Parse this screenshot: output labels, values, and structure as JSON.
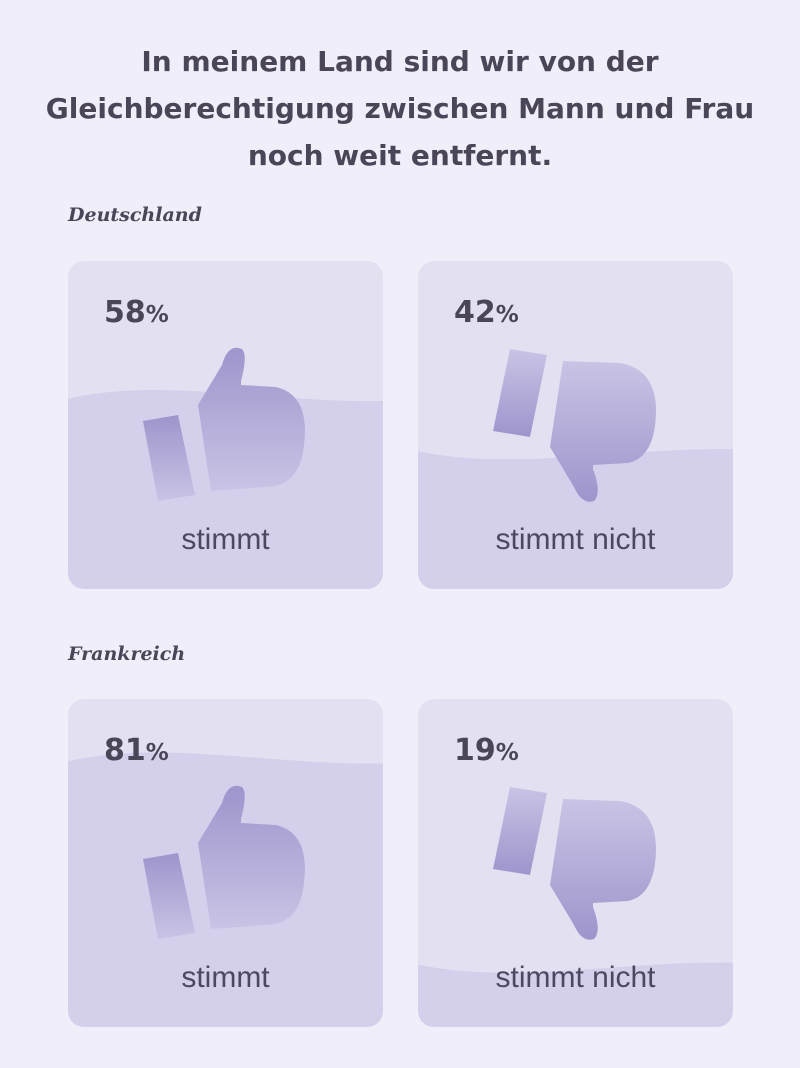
{
  "title_lines": [
    "In meinem Land sind wir von der",
    "Gleichberechtigung zwischen Mann und Frau",
    "noch weit entfernt."
  ],
  "colors": {
    "background": "#efeef9",
    "card": "#e3e1f1",
    "fill": "#d4d0eb",
    "icon_dark": "#9d95cc",
    "icon_light": "#c9c4e5",
    "text": "#4b4558"
  },
  "sections": [
    {
      "country": "Deutschland",
      "cards": [
        {
          "value": 58,
          "unit": "%",
          "label": "stimmt",
          "icon": "thumbs-up-icon"
        },
        {
          "value": 42,
          "unit": "%",
          "label": "stimmt nicht",
          "icon": "thumbs-down-icon"
        }
      ]
    },
    {
      "country": "Frankreich",
      "cards": [
        {
          "value": 81,
          "unit": "%",
          "label": "stimmt",
          "icon": "thumbs-up-icon"
        },
        {
          "value": 19,
          "unit": "%",
          "label": "stimmt nicht",
          "icon": "thumbs-down-icon"
        }
      ]
    }
  ]
}
